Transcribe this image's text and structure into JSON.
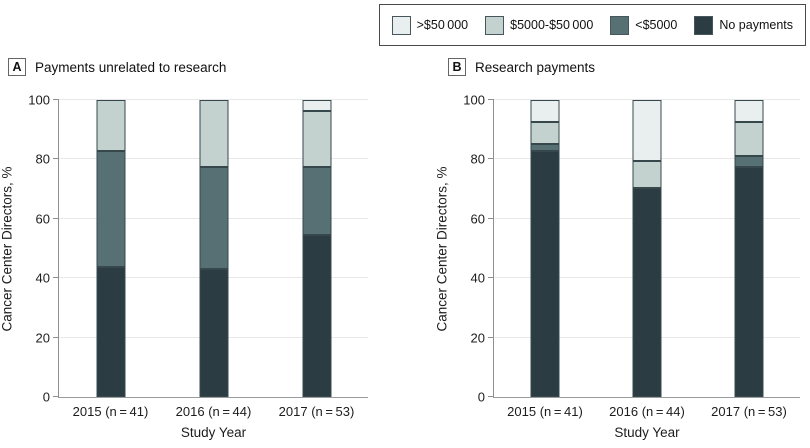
{
  "colors": {
    "segment_stroke": "#37484d",
    "axis": "#8f8f8f",
    "gridline": "#e8e8e8",
    "no_payments": "#2b3d43",
    "lt_5000": "#577074",
    "5000_to_50000": "#c3d2ce",
    "gt_50000": "#e9efee"
  },
  "legend": {
    "items": [
      {
        "label": ">$50 000",
        "color": "#e9efee"
      },
      {
        "label": "$5000-$50 000",
        "color": "#c3d2ce"
      },
      {
        "label": "<$5000",
        "color": "#577074"
      },
      {
        "label": "No payments",
        "color": "#2b3d43"
      }
    ]
  },
  "chart_data": [
    {
      "type": "bar",
      "stacked": true,
      "panel": "A",
      "title": "Payments unrelated to research",
      "categories": [
        "2015 (n = 41)",
        "2016 (n = 44)",
        "2017 (n = 53)"
      ],
      "series": [
        {
          "name": "No payments",
          "color": "#2b3d43",
          "values": [
            43.9,
            43.2,
            54.7
          ]
        },
        {
          "name": "<$5000",
          "color": "#577074",
          "values": [
            39.0,
            34.1,
            22.6
          ]
        },
        {
          "name": "$5000-$50 000",
          "color": "#c3d2ce",
          "values": [
            17.1,
            22.7,
            18.9
          ]
        },
        {
          "name": ">$50 000",
          "color": "#e9efee",
          "values": [
            0,
            0,
            3.8
          ]
        }
      ],
      "xlabel": "Study Year",
      "ylabel": "Cancer Center Directors, %",
      "ylim": [
        0,
        100
      ],
      "yticks": [
        0,
        20,
        40,
        60,
        80,
        100
      ],
      "grid": true,
      "legend_position": "top-right-shared"
    },
    {
      "type": "bar",
      "stacked": true,
      "panel": "B",
      "title": "Research payments",
      "categories": [
        "2015 (n = 41)",
        "2016 (n = 44)",
        "2017 (n = 53)"
      ],
      "series": [
        {
          "name": "No payments",
          "color": "#2b3d43",
          "values": [
            82.9,
            70.5,
            77.4
          ]
        },
        {
          "name": "<$5000",
          "color": "#577074",
          "values": [
            2.4,
            0,
            3.8
          ]
        },
        {
          "name": "$5000-$50 000",
          "color": "#c3d2ce",
          "values": [
            7.3,
            9.1,
            11.3
          ]
        },
        {
          "name": ">$50 000",
          "color": "#e9efee",
          "values": [
            7.4,
            20.4,
            7.5
          ]
        }
      ],
      "xlabel": "Study Year",
      "ylabel": "Cancer Center Directors, %",
      "ylim": [
        0,
        100
      ],
      "yticks": [
        0,
        20,
        40,
        60,
        80,
        100
      ],
      "grid": true,
      "legend_position": "top-right-shared"
    }
  ]
}
